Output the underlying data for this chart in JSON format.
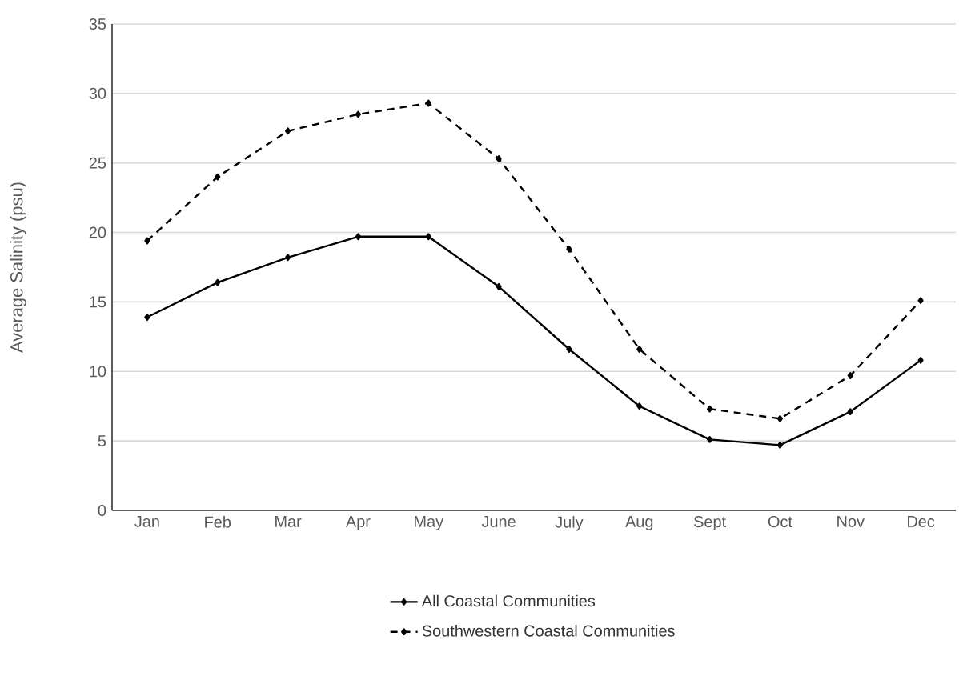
{
  "chart_data": {
    "type": "line",
    "ylabel": "Average Salinity (psu)",
    "categories": [
      "Jan",
      "Feb",
      "Mar",
      "Apr",
      "May",
      "June",
      "July",
      "Aug",
      "Sept",
      "Oct",
      "Nov",
      "Dec"
    ],
    "series": [
      {
        "name": "All Coastal Communities",
        "color": "#000000",
        "line_style": "solid",
        "values": [
          13.9,
          16.4,
          18.2,
          19.7,
          19.7,
          16.1,
          11.6,
          7.5,
          5.1,
          4.7,
          7.1,
          10.8
        ]
      },
      {
        "name": "Southwestern Coastal Communities",
        "color": "#000000",
        "line_style": "dashed",
        "values": [
          19.4,
          24.0,
          27.3,
          28.5,
          29.3,
          25.3,
          18.8,
          11.6,
          7.3,
          6.6,
          9.7,
          15.1
        ]
      }
    ],
    "ylim": [
      0,
      35
    ],
    "yticks": [
      0,
      5,
      10,
      15,
      20,
      25,
      30,
      35
    ],
    "grid": "y",
    "legend": "bottom",
    "marker": "diamond"
  }
}
